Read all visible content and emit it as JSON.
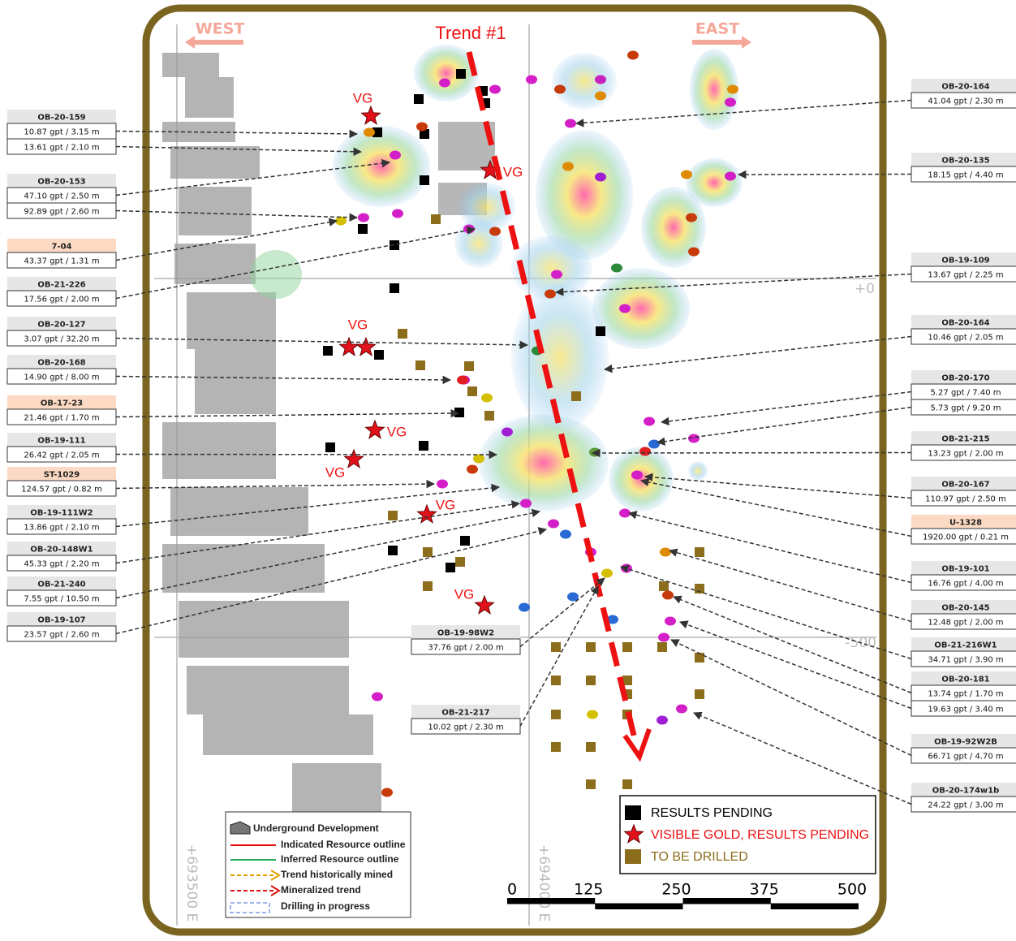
{
  "header": {
    "west": "WEST",
    "east": "EAST",
    "trend": "Trend #1"
  },
  "vg_labels": [
    "VG",
    "VG",
    "VG",
    "VG",
    "VG",
    "VG",
    "VG"
  ],
  "callouts": [
    {
      "id": "OB-20-159",
      "values": [
        "10.87 gpt / 3.15 m",
        "13.61 gpt / 2.10 m"
      ]
    },
    {
      "id": "OB-20-153",
      "values": [
        "47.10 gpt / 2.50 m",
        "92.89 gpt / 2.60 m"
      ]
    },
    {
      "id": "7-04",
      "highlight": true,
      "values": [
        "43.37 gpt / 1.31 m"
      ]
    },
    {
      "id": "OB-21-226",
      "values": [
        "17.56 gpt / 2.00 m"
      ]
    },
    {
      "id": "OB-20-127",
      "values": [
        "3.07 gpt / 32.20 m"
      ]
    },
    {
      "id": "OB-20-168",
      "values": [
        "14.90 gpt / 8.00 m"
      ]
    },
    {
      "id": "OB-17-23",
      "highlight": true,
      "values": [
        "21.46 gpt / 1.70 m"
      ]
    },
    {
      "id": "OB-19-111",
      "values": [
        "26.42 gpt / 2.05 m"
      ]
    },
    {
      "id": "ST-1029",
      "highlight": true,
      "values": [
        "124.57 gpt / 0.82 m"
      ]
    },
    {
      "id": "OB-19-111W2",
      "values": [
        "13.86 gpt / 2.10 m"
      ]
    },
    {
      "id": "OB-20-148W1",
      "values": [
        "45.33 gpt / 2.20 m"
      ]
    },
    {
      "id": "OB-21-240",
      "values": [
        "7.55 gpt / 10.50 m"
      ]
    },
    {
      "id": "OB-19-107",
      "values": [
        "23.57 gpt / 2.60 m"
      ]
    },
    {
      "id": "OB-19-98W2",
      "values": [
        "37.76 gpt / 2.00 m"
      ]
    },
    {
      "id": "OB-21-217",
      "values": [
        "10.02 gpt / 2.30 m"
      ]
    },
    {
      "id": "OB-20-164",
      "values": [
        "41.04 gpt / 2.30 m"
      ]
    },
    {
      "id": "OB-20-135",
      "values": [
        "18.15 gpt / 4.40 m"
      ]
    },
    {
      "id": "OB-19-109",
      "values": [
        "13.67 gpt / 2.25 m"
      ]
    },
    {
      "id": "OB-20-164",
      "values": [
        "10.46 gpt / 2.05 m"
      ]
    },
    {
      "id": "OB-20-170",
      "values": [
        "5.27 gpt / 7.40 m",
        "5.73 gpt / 9.20 m"
      ]
    },
    {
      "id": "OB-21-215",
      "values": [
        "13.23 gpt / 2.00 m"
      ]
    },
    {
      "id": "OB-20-167",
      "values": [
        "110.97 gpt / 2.50 m"
      ]
    },
    {
      "id": "U-1328",
      "highlight": true,
      "values": [
        "1920.00 gpt / 0.21 m"
      ]
    },
    {
      "id": "OB-19-101",
      "values": [
        "16.76 gpt / 4.00 m"
      ]
    },
    {
      "id": "OB-20-145",
      "values": [
        "12.48 gpt / 2.00 m"
      ]
    },
    {
      "id": "OB-21-216W1",
      "values": [
        "34.71 gpt / 3.90 m"
      ]
    },
    {
      "id": "OB-20-181",
      "values": [
        "13.74 gpt / 1.70 m",
        "19.63 gpt / 3.40 m"
      ]
    },
    {
      "id": "OB-19-92W2B",
      "values": [
        "66.71 gpt / 4.70 m"
      ]
    },
    {
      "id": "OB-20-174w1b",
      "values": [
        "24.22 gpt / 3.00 m"
      ]
    }
  ],
  "legend": {
    "items": [
      "Underground Development",
      "Indicated Resource outline",
      "Inferred Resource outline",
      "Trend historically mined",
      "Mineralized trend",
      "Drilling in progress"
    ]
  },
  "status_legend": {
    "pending": "RESULTS PENDING",
    "visible_gold": "VISIBLE GOLD, RESULTS PENDING",
    "to_drill": "TO BE DRILLED"
  },
  "scale": [
    "0",
    "125",
    "250",
    "375",
    "500"
  ],
  "grid_labels": {
    "easting_1": "+693500 E",
    "easting_2": "+694000 E",
    "elev_1": "+0",
    "elev_2": "-500"
  }
}
